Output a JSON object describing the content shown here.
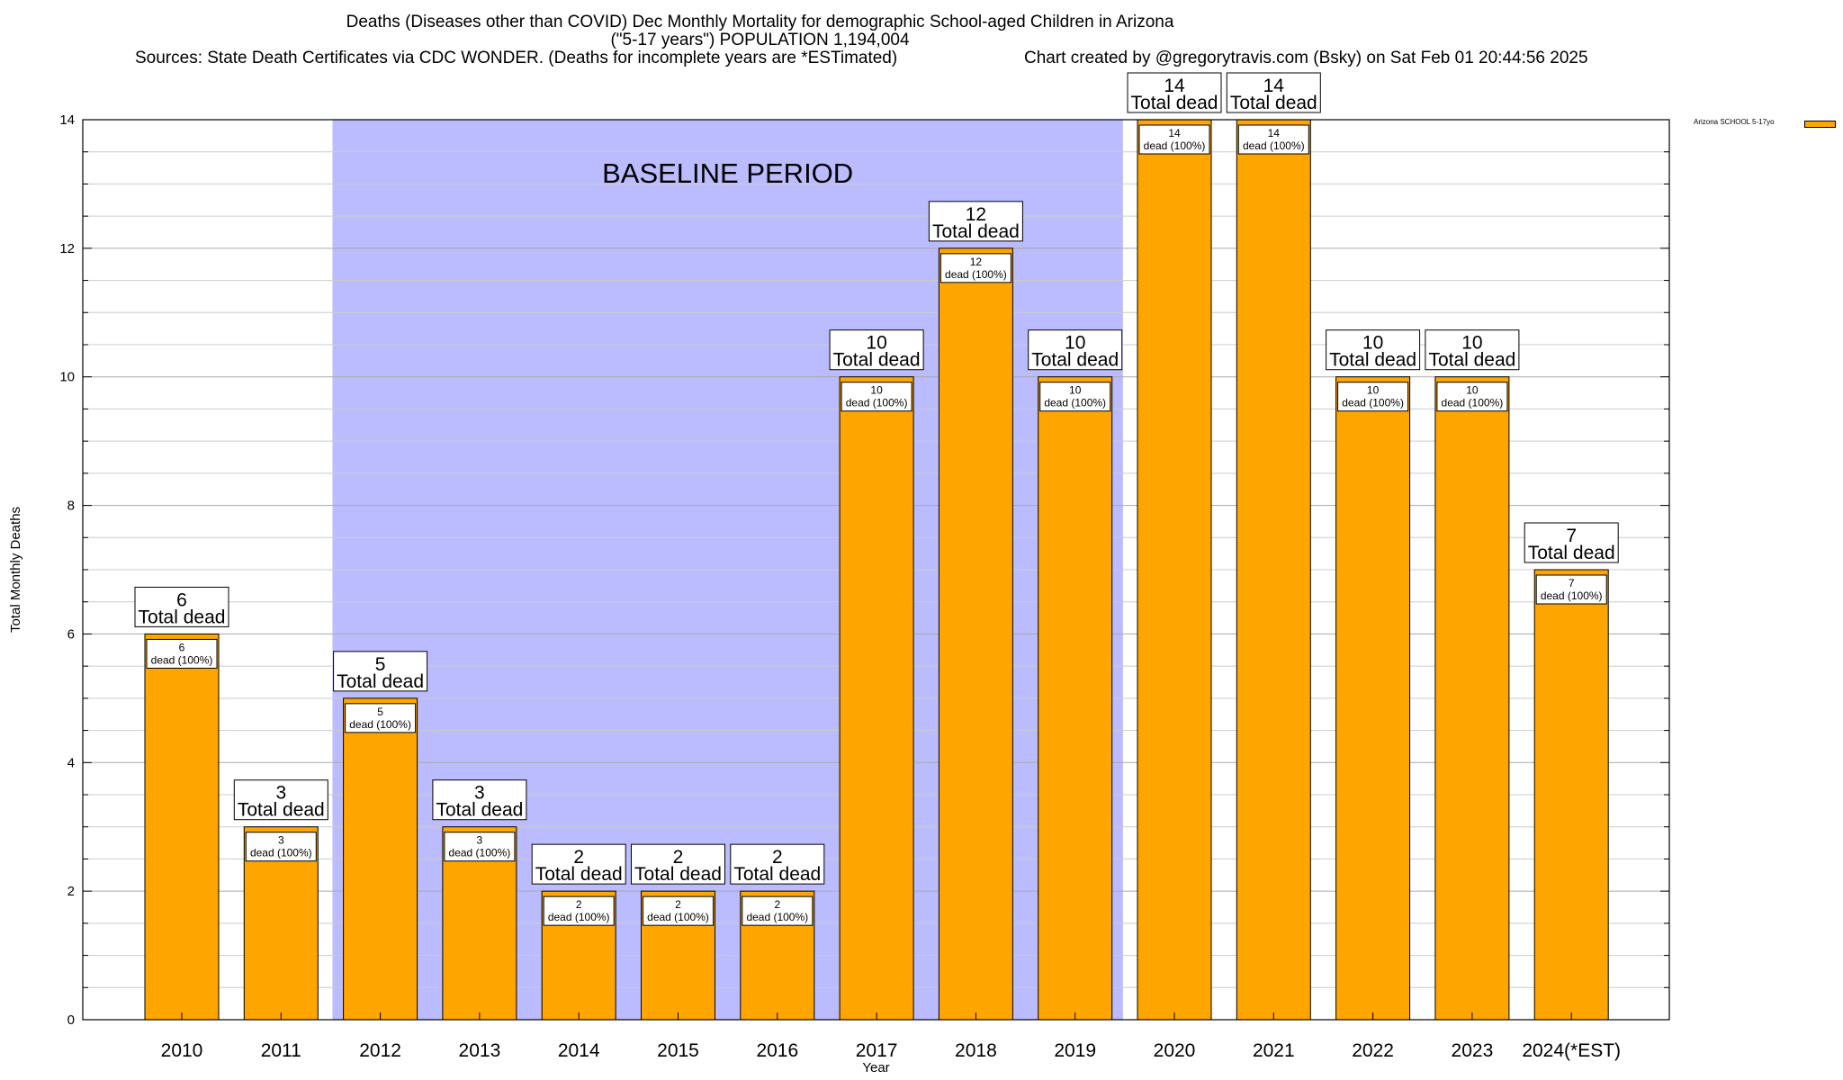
{
  "header": {
    "title": "Deaths (Diseases other than COVID) Dec Monthly Mortality for demographic School-aged Children in Arizona",
    "subtitle": "(\"5-17 years\") POPULATION 1,194,004",
    "sources": "Sources: State Death Certificates via CDC WONDER. (Deaths for incomplete years are *ESTimated)",
    "credit": "Chart created by @gregorytravis.com (Bsky) on Sat Feb 01 20:44:56 2025"
  },
  "legend": {
    "label": "Arizona SCHOOL 5-17yo",
    "color": "#ffa500"
  },
  "chart_data": {
    "type": "bar",
    "categories": [
      "2010",
      "2011",
      "2012",
      "2013",
      "2014",
      "2015",
      "2016",
      "2017",
      "2018",
      "2019",
      "2020",
      "2021",
      "2022",
      "2023",
      "2024(*EST)"
    ],
    "series": [
      {
        "name": "Arizona SCHOOL 5-17yo",
        "values": [
          6,
          3,
          5,
          3,
          2,
          2,
          2,
          10,
          12,
          10,
          14,
          14,
          10,
          10,
          7
        ]
      }
    ],
    "xlabel": "Year",
    "ylabel": "Total Monthly Deaths",
    "ylim": [
      0,
      14
    ],
    "yticks": [
      0,
      2,
      4,
      6,
      8,
      10,
      12,
      14
    ],
    "grid": true,
    "legend_position": "top-right",
    "total_label": "Total dead",
    "inner_label_suffix": "dead (100%)",
    "baseline": {
      "label": "BASELINE PERIOD",
      "from": "2012",
      "to": "2019",
      "color": "#bbbbff"
    },
    "bar_color": "#ffa500"
  }
}
